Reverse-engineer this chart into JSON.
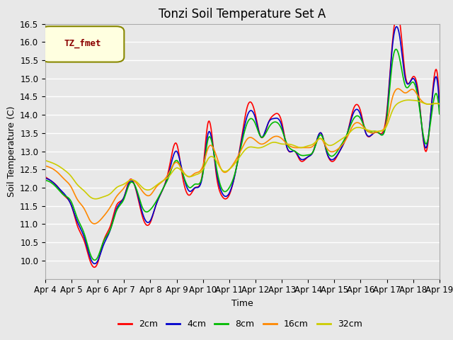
{
  "title": "Tonzi Soil Temperature Set A",
  "xlabel": "Time",
  "ylabel": "Soil Temperature (C)",
  "ylim": [
    9.5,
    16.5
  ],
  "yticks": [
    10.0,
    10.5,
    11.0,
    11.5,
    12.0,
    12.5,
    13.0,
    13.5,
    14.0,
    14.5,
    15.0,
    15.5,
    16.0,
    16.5
  ],
  "x_labels": [
    "Apr 4",
    "Apr 5",
    "Apr 6",
    "Apr 7",
    "Apr 8",
    "Apr 9",
    "Apr 10",
    "Apr 11",
    "Apr 12",
    "Apr 13",
    "Apr 14",
    "Apr 15",
    "Apr 16",
    "Apr 17",
    "Apr 18",
    "Apr 19"
  ],
  "legend_label": "TZ_fmet",
  "series_labels": [
    "2cm",
    "4cm",
    "8cm",
    "16cm",
    "32cm"
  ],
  "series_colors": [
    "#ff0000",
    "#0000cc",
    "#00bb00",
    "#ff8800",
    "#cccc00"
  ],
  "line_width": 1.2,
  "background_color": "#e8e8e8",
  "plot_bg_color": "#e8e8e8",
  "grid_color": "#ffffff",
  "title_fontsize": 12,
  "label_fontsize": 9,
  "tick_fontsize": 8.5
}
